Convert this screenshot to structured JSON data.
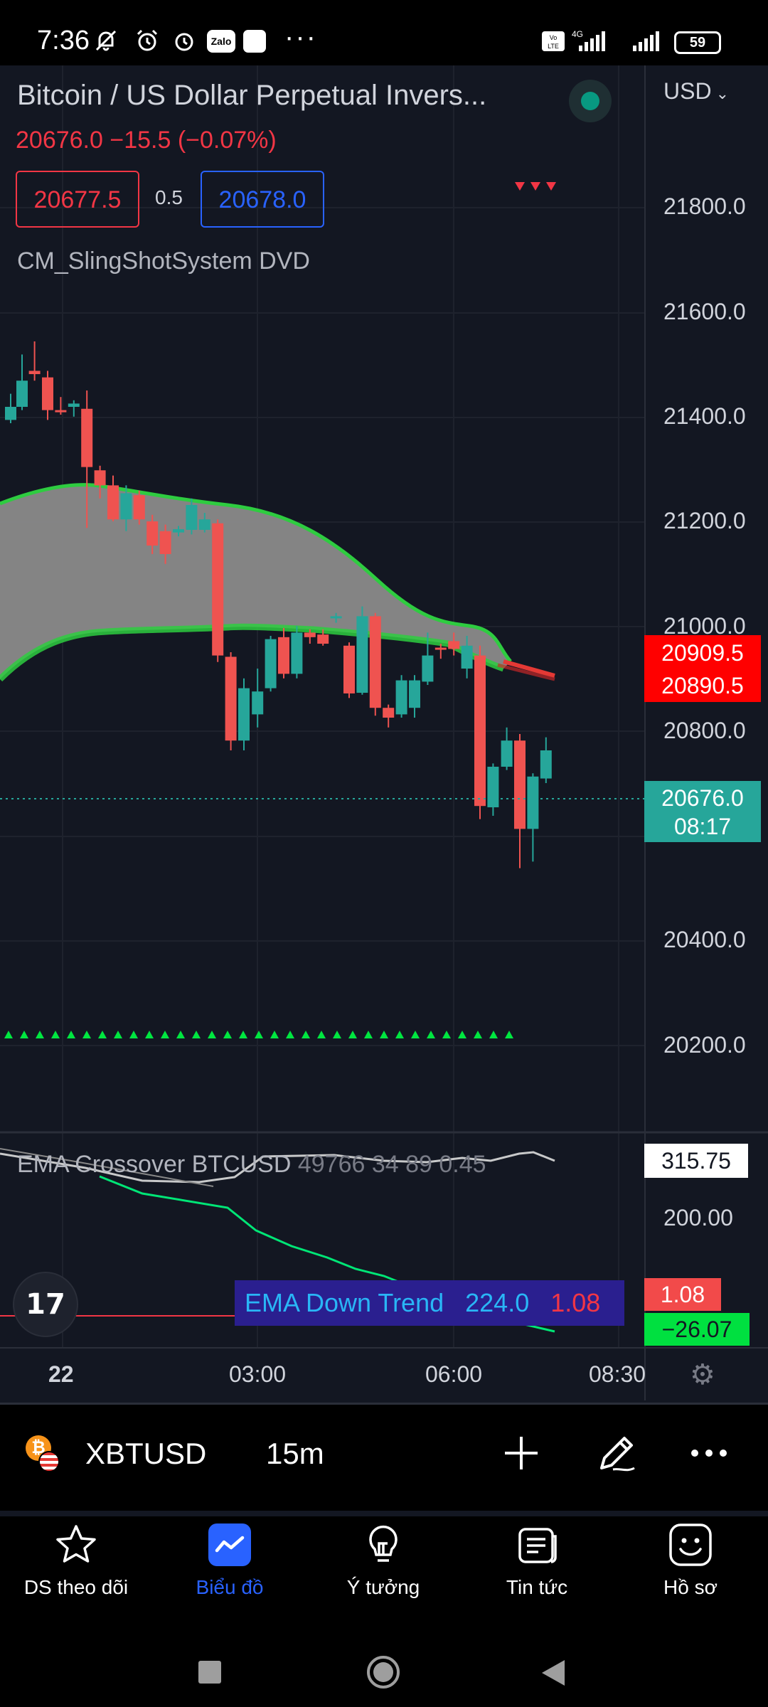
{
  "status_bar": {
    "time": "7:36",
    "zalo": "Zalo",
    "battery": "59",
    "more": "···"
  },
  "chart": {
    "title": "Bitcoin / US Dollar Perpetual Invers...",
    "currency": "USD",
    "last_price_line": "20676.0  −15.5 (−0.07%)",
    "bid": "20677.5",
    "spread": "0.5",
    "ask": "20678.0",
    "indicator": "CM_SlingShotSystem DVD",
    "price_axis": [
      "21800.0",
      "21600.0",
      "21400.0",
      "21200.0",
      "21000.0",
      "20800.0",
      "20400.0",
      "20200.0"
    ],
    "ema_fast_tag": "20909.5",
    "ema_slow_tag": "20890.5",
    "last_price_tag": "20676.0",
    "countdown": "08:17",
    "time_axis": [
      "22",
      "03:00",
      "06:00",
      "08:30"
    ],
    "colors": {
      "up": "#26a69a",
      "down": "#ef5350",
      "ema": "#00c853",
      "background": "#131722"
    }
  },
  "ema_pane": {
    "legend_name": "EMA Crossover BTCUSD",
    "legend_values": "49766 34 89 0.45",
    "box_label": "EMA Down Trend",
    "box_value1": "224.0",
    "box_value2": "1.08",
    "axis_tag_top": "315.75",
    "axis_label": "200.00",
    "tag_red": "1.08",
    "tag_green": "−26.07"
  },
  "toolbar": {
    "symbol": "XBTUSD",
    "interval": "15m"
  },
  "bottom_nav": {
    "items": [
      {
        "label": "DS theo dõi",
        "icon": "star-icon"
      },
      {
        "label": "Biểu đồ",
        "icon": "chart-icon"
      },
      {
        "label": "Ý tưởng",
        "icon": "lightbulb-icon"
      },
      {
        "label": "Tin tức",
        "icon": "news-icon"
      },
      {
        "label": "Hồ sơ",
        "icon": "profile-icon"
      }
    ]
  }
}
